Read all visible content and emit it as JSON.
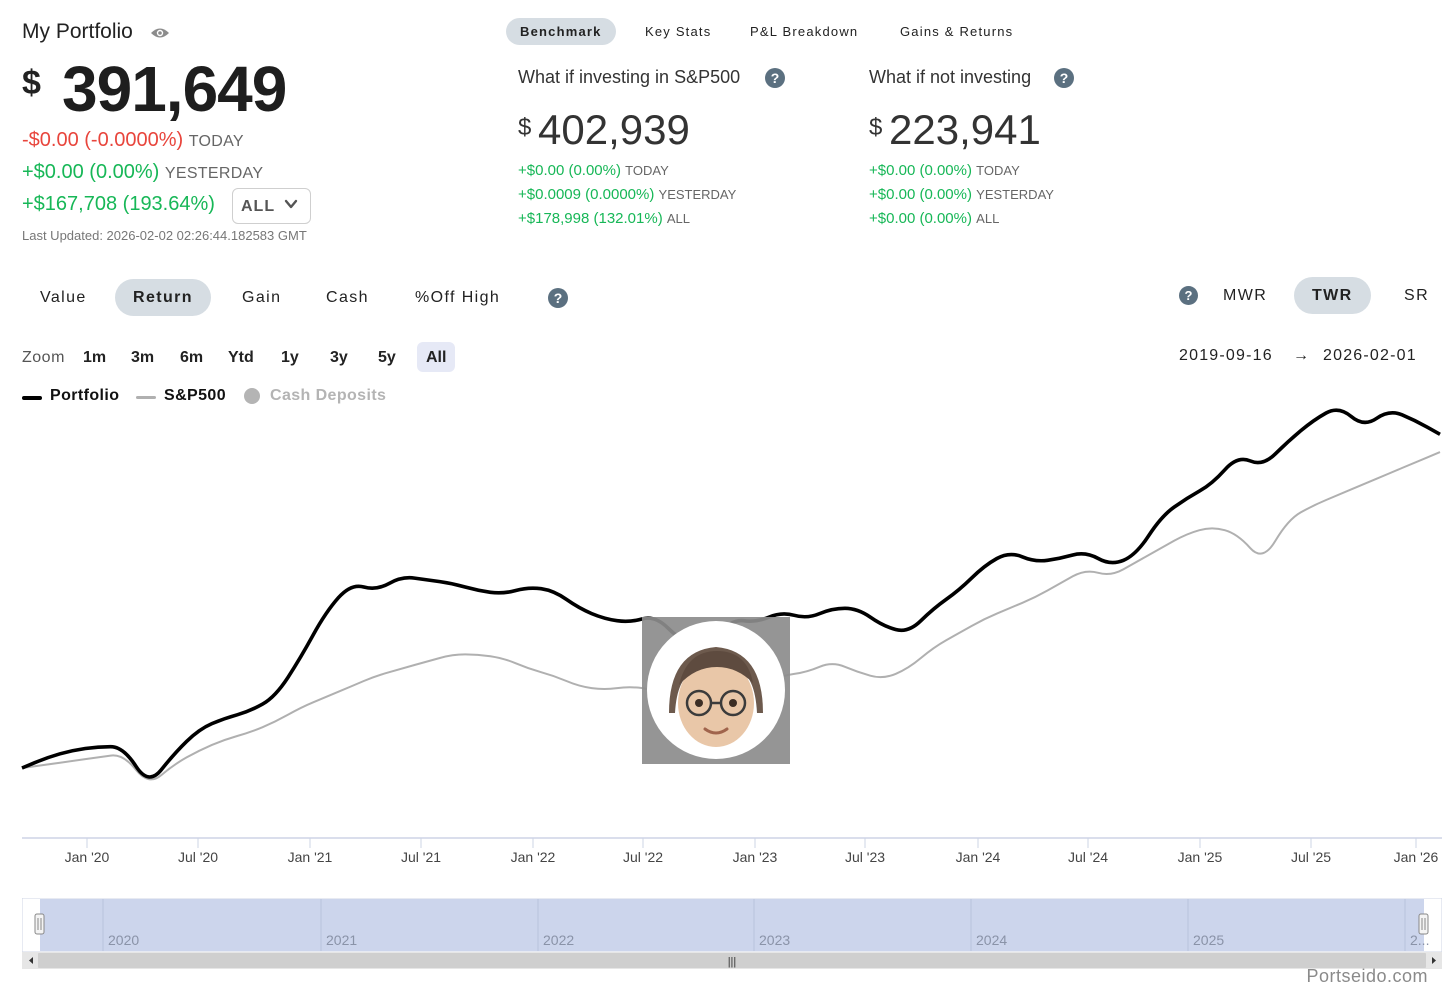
{
  "header": {
    "title": "My Portfolio",
    "currency_symbol": "$",
    "total_value": "391,649",
    "today_change": "-$0.00 (-0.0000%)",
    "today_label": "TODAY",
    "yesterday_change": "+$0.00 (0.00%)",
    "yesterday_label": "YESTERDAY",
    "all_change": "+$167,708 (193.64%)",
    "range_select": "ALL",
    "last_updated": "Last Updated: 2026-02-02 02:26:44.182583 GMT"
  },
  "top_tabs": [
    "Benchmark",
    "Key Stats",
    "P&L Breakdown",
    "Gains & Returns"
  ],
  "whatif": [
    {
      "title": "What if investing in S&P500",
      "currency_symbol": "$",
      "value": "402,939",
      "today": "+$0.00 (0.00%)",
      "today_label": "TODAY",
      "yesterday": "+$0.0009 (0.0000%)",
      "yesterday_label": "YESTERDAY",
      "all": "+$178,998 (132.01%)",
      "all_label": "ALL"
    },
    {
      "title": "What if not investing",
      "currency_symbol": "$",
      "value": "223,941",
      "today": "+$0.00 (0.00%)",
      "today_label": "TODAY",
      "yesterday": "+$0.00 (0.00%)",
      "yesterday_label": "YESTERDAY",
      "all": "+$0.00 (0.00%)",
      "all_label": "ALL"
    }
  ],
  "help_glyph": "?",
  "mode_tabs": [
    "Value",
    "Return",
    "Gain",
    "Cash",
    "%Off High"
  ],
  "return_type_tabs": [
    "MWR",
    "TWR",
    "SR"
  ],
  "zoom": {
    "label": "Zoom",
    "options": [
      "1m",
      "3m",
      "6m",
      "Ytd",
      "1y",
      "3y",
      "5y",
      "All"
    ],
    "selected": "All",
    "start_date": "2019-09-16",
    "arrow": "→",
    "end_date": "2026-02-01"
  },
  "legend": [
    {
      "name": "Portfolio",
      "color": "#000000"
    },
    {
      "name": "S&P500",
      "color": "#b0b0b0"
    },
    {
      "name": "Cash Deposits",
      "color": "#b4b4b4"
    }
  ],
  "chart_data": {
    "type": "line",
    "x_tick_labels": [
      "Jan '20",
      "Jul '20",
      "Jan '21",
      "Jul '21",
      "Jan '22",
      "Jul '22",
      "Jan '23",
      "Jul '23",
      "Jan '24",
      "Jul '24",
      "Jan '25",
      "Jul '25",
      "Jan '26"
    ],
    "x_range": [
      "2019-09-16",
      "2026-02-01"
    ],
    "grid": false,
    "legend_position": "top-left",
    "series": [
      {
        "name": "Portfolio",
        "color": "#000000",
        "values": [
          0,
          3,
          5,
          6,
          6,
          -5,
          4,
          11,
          14,
          16,
          20,
          31,
          44,
          52,
          50,
          54,
          53,
          52,
          50,
          49,
          51,
          50,
          45,
          42,
          41,
          43,
          36,
          33,
          42,
          41,
          44,
          42,
          45,
          45,
          40,
          38,
          45,
          50,
          57,
          61,
          58,
          59,
          61,
          57,
          60,
          71,
          76,
          80,
          88,
          85,
          92,
          98,
          102,
          96,
          101,
          98,
          94
        ]
      },
      {
        "name": "S&P500",
        "color": "#b0b0b0",
        "values": [
          0,
          1,
          2,
          3,
          4,
          -5,
          1,
          5,
          8,
          10,
          13,
          17,
          20,
          23,
          26,
          28,
          30,
          32,
          32,
          31,
          28,
          26,
          23,
          22,
          23,
          22,
          18,
          18,
          24,
          23,
          26,
          27,
          30,
          27,
          25,
          28,
          34,
          38,
          42,
          45,
          48,
          52,
          56,
          54,
          58,
          62,
          66,
          68,
          66,
          58,
          70,
          74,
          77,
          80,
          83,
          86,
          89
        ]
      }
    ]
  },
  "navigator": {
    "year_labels": [
      "2020",
      "2021",
      "2022",
      "2023",
      "2024",
      "2025",
      "2..."
    ],
    "handle_glyph": "|||"
  },
  "brand": "Portseido.com"
}
